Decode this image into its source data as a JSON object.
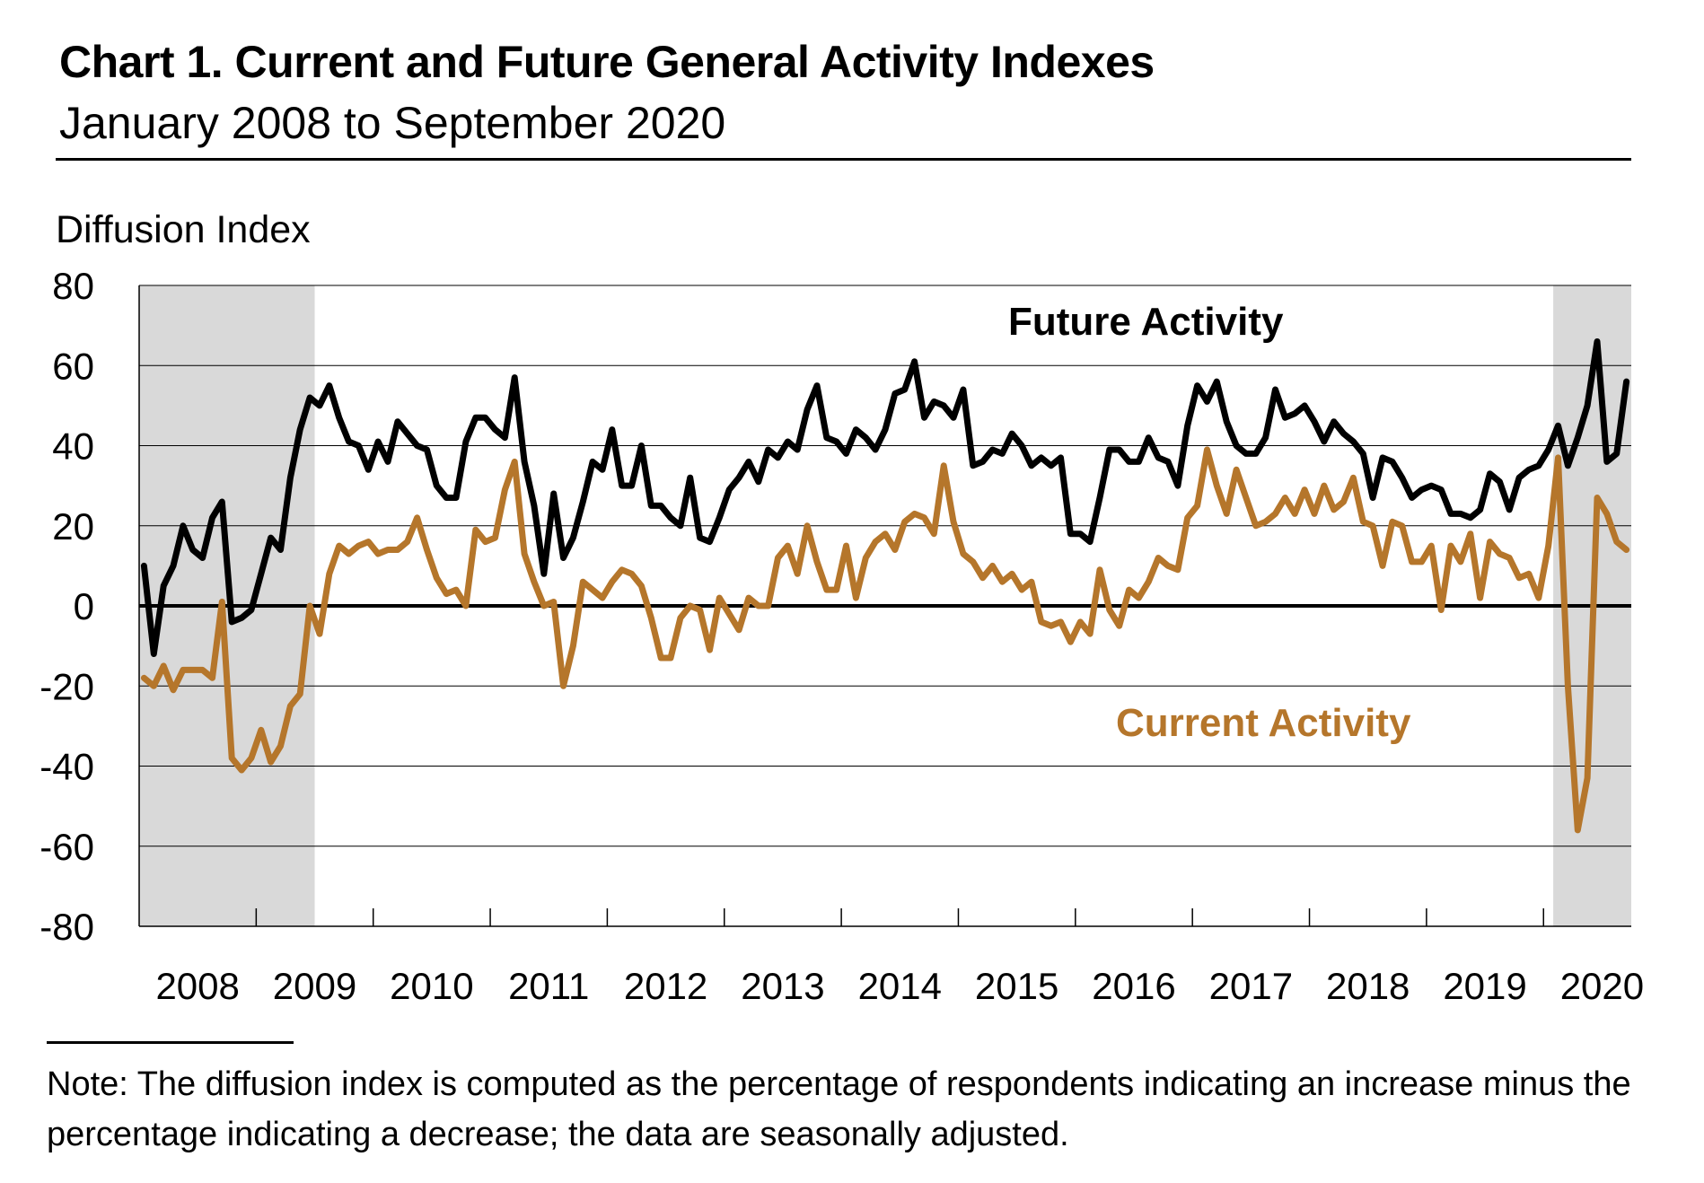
{
  "header": {
    "title": "Chart 1. Current and Future General Activity Indexes",
    "subtitle": "January 2008 to September 2020"
  },
  "note": {
    "text": "Note: The diffusion index is computed as the percentage of respondents indicating an increase minus the percentage indicating a decrease; the data are seasonally adjusted."
  },
  "colors": {
    "future": "#000000",
    "current": "#B5762B",
    "recession": "#D9D9D9",
    "gridline": "#000000"
  },
  "chart_data": {
    "type": "line",
    "title": "Chart 1. Current and Future General Activity Indexes",
    "subtitle": "January 2008 to September 2020",
    "ylabel": "Diffusion Index",
    "xlabel": "",
    "ylim": [
      -80,
      80
    ],
    "yticks": [
      80,
      60,
      40,
      20,
      0,
      -20,
      -40,
      -60,
      -80
    ],
    "year_labels": [
      "2008",
      "2009",
      "2010",
      "2011",
      "2012",
      "2013",
      "2014",
      "2015",
      "2016",
      "2017",
      "2018",
      "2019",
      "2020"
    ],
    "x_start": "2008-01",
    "x_end": "2020-09",
    "recessions": [
      {
        "start": 0,
        "end": 17,
        "label": "2008-01 to 2009-06"
      },
      {
        "start": 145,
        "end": 152,
        "label": "2020-02 to 2020-09"
      }
    ],
    "series": [
      {
        "name": "Future Activity",
        "label": "Future Activity",
        "color": "#000000",
        "values": [
          10,
          -12,
          5,
          10,
          20,
          14,
          12,
          22,
          26,
          -4,
          -3,
          -1,
          8,
          17,
          14,
          32,
          44,
          52,
          50,
          55,
          47,
          41,
          40,
          34,
          41,
          36,
          46,
          43,
          40,
          39,
          30,
          27,
          27,
          41,
          47,
          47,
          44,
          42,
          57,
          36,
          25,
          8,
          28,
          12,
          17,
          26,
          36,
          34,
          44,
          30,
          30,
          40,
          25,
          25,
          22,
          20,
          32,
          17,
          16,
          22,
          29,
          32,
          36,
          31,
          39,
          37,
          41,
          39,
          49,
          55,
          42,
          41,
          38,
          44,
          42,
          39,
          44,
          53,
          54,
          61,
          47,
          51,
          50,
          47,
          54,
          35,
          36,
          39,
          38,
          43,
          40,
          35,
          37,
          35,
          37,
          18,
          18,
          16,
          27,
          39,
          39,
          36,
          36,
          42,
          37,
          36,
          30,
          45,
          55,
          51,
          56,
          46,
          40,
          38,
          38,
          42,
          54,
          47,
          48,
          50,
          46,
          41,
          46,
          43,
          41,
          38,
          27,
          37,
          36,
          32,
          27,
          29,
          30,
          29,
          23,
          23,
          22,
          24,
          33,
          31,
          24,
          32,
          34,
          35,
          39,
          45,
          35,
          42,
          50,
          66,
          36,
          38,
          56
        ]
      },
      {
        "name": "Current Activity",
        "label": "Current Activity",
        "color": "#B5762B",
        "values": [
          -18,
          -20,
          -15,
          -21,
          -16,
          -16,
          -16,
          -18,
          1,
          -38,
          -41,
          -38,
          -31,
          -39,
          -35,
          -25,
          -22,
          0,
          -7,
          8,
          15,
          13,
          15,
          16,
          13,
          14,
          14,
          16,
          22,
          14,
          7,
          3,
          4,
          0,
          19,
          16,
          17,
          29,
          36,
          13,
          6,
          0,
          1,
          -20,
          -10,
          6,
          4,
          2,
          6,
          9,
          8,
          5,
          -3,
          -13,
          -13,
          -3,
          0,
          -1,
          -11,
          2,
          -2,
          -6,
          2,
          0,
          0,
          12,
          15,
          8,
          20,
          11,
          4,
          4,
          15,
          2,
          12,
          16,
          18,
          14,
          21,
          23,
          22,
          18,
          35,
          21,
          13,
          11,
          7,
          10,
          6,
          8,
          4,
          6,
          -4,
          -5,
          -4,
          -9,
          -4,
          -7,
          9,
          -1,
          -5,
          4,
          2,
          6,
          12,
          10,
          9,
          22,
          25,
          39,
          30,
          23,
          34,
          27,
          20,
          21,
          23,
          27,
          23,
          29,
          23,
          30,
          24,
          26,
          32,
          21,
          20,
          10,
          21,
          20,
          11,
          11,
          15,
          -1,
          15,
          11,
          18,
          2,
          16,
          13,
          12,
          7,
          8,
          2,
          15,
          37,
          -20,
          -56,
          -43,
          27,
          23,
          16,
          14
        ]
      }
    ]
  }
}
